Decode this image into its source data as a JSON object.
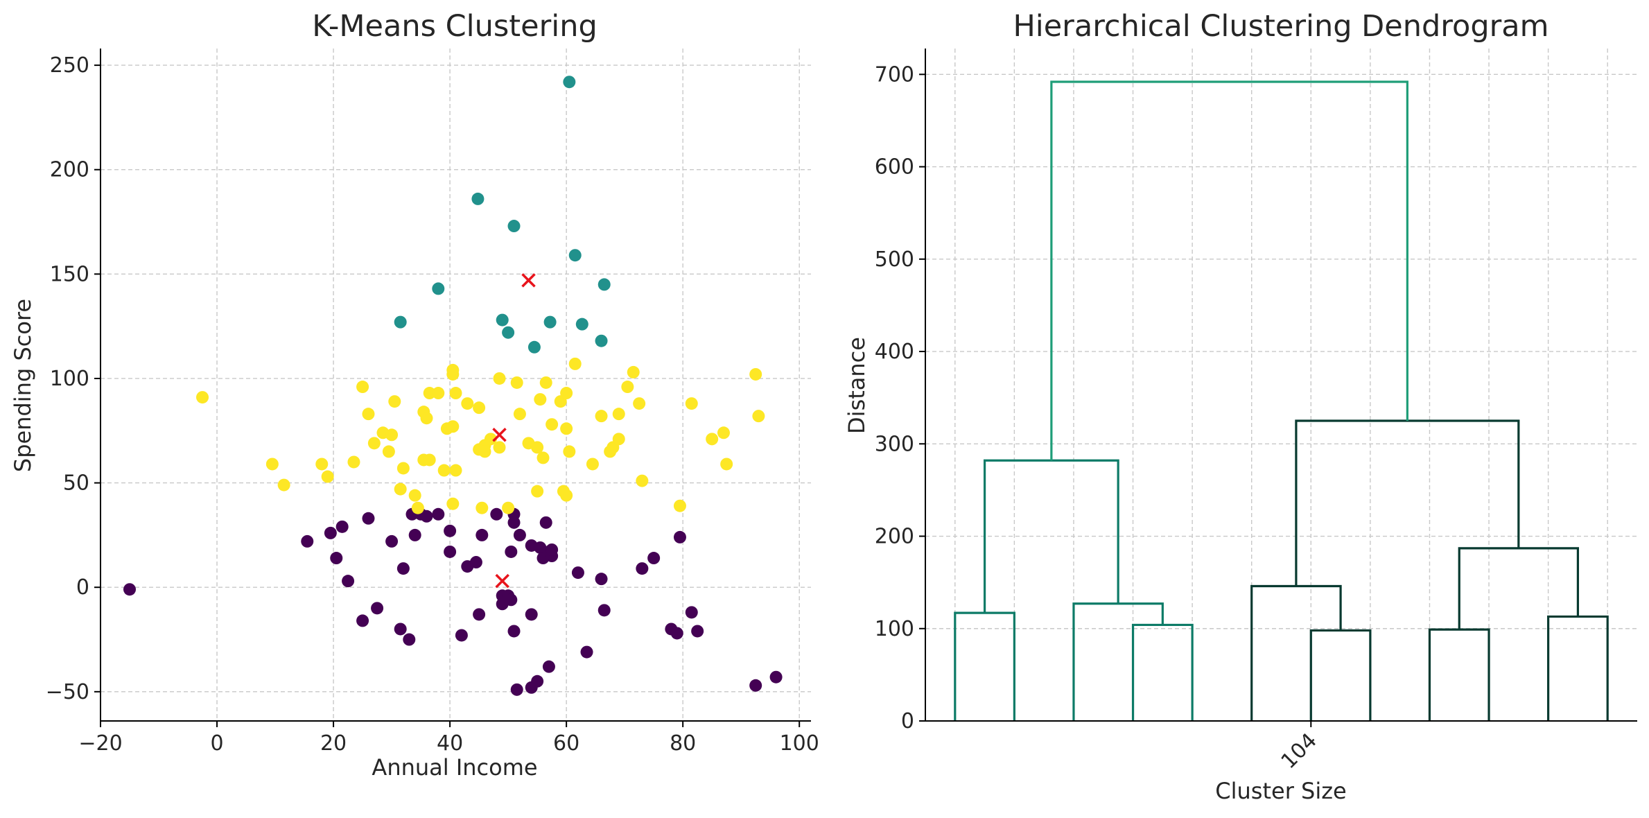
{
  "chart_data": [
    {
      "type": "scatter",
      "title": "K-Means Clustering",
      "xlabel": "Annual Income",
      "ylabel": "Spending Score",
      "xlim": [
        -20,
        102
      ],
      "ylim": [
        -64,
        258
      ],
      "xticks": [
        -20,
        0,
        20,
        40,
        60,
        80,
        100
      ],
      "yticks": [
        -50,
        0,
        50,
        100,
        150,
        200,
        250
      ],
      "grid": true,
      "colors": {
        "cluster_0": "#440154",
        "cluster_1": "#21918c",
        "cluster_2": "#fde725",
        "centroid": "#e8141c"
      },
      "series": [
        {
          "cluster": 0,
          "points": [
            [
              -15,
              -1
            ],
            [
              15.5,
              22
            ],
            [
              19.5,
              26
            ],
            [
              20.5,
              14
            ],
            [
              21.5,
              29
            ],
            [
              22.5,
              3
            ],
            [
              25,
              -16
            ],
            [
              26,
              33
            ],
            [
              27.5,
              -10
            ],
            [
              30,
              22
            ],
            [
              31.5,
              -20
            ],
            [
              32,
              9
            ],
            [
              33,
              -25
            ],
            [
              33.5,
              35
            ],
            [
              34,
              25
            ],
            [
              35,
              35
            ],
            [
              36,
              34
            ],
            [
              38,
              35
            ],
            [
              40,
              27
            ],
            [
              40,
              17
            ],
            [
              42,
              -23
            ],
            [
              43,
              10
            ],
            [
              45,
              -13
            ],
            [
              44.5,
              12
            ],
            [
              45.5,
              25
            ],
            [
              48,
              35
            ],
            [
              49,
              -4
            ],
            [
              49,
              -8
            ],
            [
              50,
              -4
            ],
            [
              50.5,
              -6
            ],
            [
              50.5,
              17
            ],
            [
              51,
              31
            ],
            [
              51,
              35
            ],
            [
              51,
              -21
            ],
            [
              51.5,
              -49
            ],
            [
              52,
              25
            ],
            [
              54,
              20
            ],
            [
              54,
              -13
            ],
            [
              54,
              -48
            ],
            [
              55,
              -45
            ],
            [
              55.5,
              19
            ],
            [
              56,
              14
            ],
            [
              56.5,
              31
            ],
            [
              57,
              17
            ],
            [
              57,
              -38
            ],
            [
              57.5,
              15
            ],
            [
              57.5,
              18
            ],
            [
              62,
              7
            ],
            [
              63.5,
              -31
            ],
            [
              66,
              4
            ],
            [
              66.5,
              -11
            ],
            [
              73,
              9
            ],
            [
              75,
              14
            ],
            [
              78,
              -20
            ],
            [
              79,
              -22
            ],
            [
              79.5,
              24
            ],
            [
              81.5,
              -12
            ],
            [
              82.5,
              -21
            ],
            [
              92.5,
              -47
            ],
            [
              96,
              -43
            ]
          ]
        },
        {
          "cluster": 1,
          "points": [
            [
              31.5,
              127
            ],
            [
              38,
              143
            ],
            [
              44.8,
              186
            ],
            [
              49,
              128
            ],
            [
              50,
              122
            ],
            [
              51,
              173
            ],
            [
              54.5,
              115
            ],
            [
              57.2,
              127
            ],
            [
              60.5,
              242
            ],
            [
              61.5,
              159
            ],
            [
              62.7,
              126
            ],
            [
              66,
              118
            ],
            [
              66.5,
              145
            ]
          ]
        },
        {
          "cluster": 2,
          "points": [
            [
              -2.5,
              91
            ],
            [
              9.5,
              59
            ],
            [
              11.5,
              49
            ],
            [
              18,
              59
            ],
            [
              19,
              53
            ],
            [
              23.5,
              60
            ],
            [
              25,
              96
            ],
            [
              26,
              83
            ],
            [
              27,
              69
            ],
            [
              28.5,
              74
            ],
            [
              29.5,
              65
            ],
            [
              30,
              73
            ],
            [
              30.5,
              89
            ],
            [
              31.5,
              47
            ],
            [
              32,
              57
            ],
            [
              34,
              44
            ],
            [
              34.5,
              38
            ],
            [
              35.5,
              61
            ],
            [
              35.5,
              84
            ],
            [
              36,
              81
            ],
            [
              36.5,
              61
            ],
            [
              36.5,
              93
            ],
            [
              38,
              93
            ],
            [
              39,
              56
            ],
            [
              39.5,
              76
            ],
            [
              40.5,
              104
            ],
            [
              40.5,
              102
            ],
            [
              40.5,
              40
            ],
            [
              40.5,
              77
            ],
            [
              41,
              93
            ],
            [
              41,
              56
            ],
            [
              43,
              88
            ],
            [
              45,
              86
            ],
            [
              45,
              66
            ],
            [
              45.5,
              38
            ],
            [
              46,
              68
            ],
            [
              46,
              65
            ],
            [
              47,
              71
            ],
            [
              48.5,
              67
            ],
            [
              48.5,
              100
            ],
            [
              50,
              38
            ],
            [
              51.5,
              98
            ],
            [
              52,
              83
            ],
            [
              53.5,
              69
            ],
            [
              55,
              46
            ],
            [
              55,
              67
            ],
            [
              55.5,
              90
            ],
            [
              56,
              62
            ],
            [
              56.5,
              98
            ],
            [
              57.5,
              78
            ],
            [
              59,
              89
            ],
            [
              59.5,
              46
            ],
            [
              60,
              44
            ],
            [
              60,
              93
            ],
            [
              60,
              76
            ],
            [
              60.5,
              65
            ],
            [
              61.5,
              107
            ],
            [
              64.5,
              59
            ],
            [
              66,
              82
            ],
            [
              67.5,
              65
            ],
            [
              68,
              67
            ],
            [
              69,
              83
            ],
            [
              69,
              71
            ],
            [
              70.5,
              96
            ],
            [
              71.5,
              103
            ],
            [
              72.5,
              88
            ],
            [
              73,
              51
            ],
            [
              79.5,
              39
            ],
            [
              81.5,
              88
            ],
            [
              85,
              71
            ],
            [
              87,
              74
            ],
            [
              87.5,
              59
            ],
            [
              92.5,
              102
            ],
            [
              93,
              82
            ]
          ]
        }
      ],
      "centroids": [
        [
          49,
          3
        ],
        [
          48.5,
          73
        ],
        [
          53.5,
          147
        ]
      ]
    },
    {
      "type": "dendrogram",
      "title": "Hierarchical Clustering Dendrogram",
      "xlabel": "Cluster Size",
      "ylabel": "Distance",
      "ylim": [
        0,
        728
      ],
      "yticks": [
        0,
        100,
        200,
        300,
        400,
        500,
        600,
        700
      ],
      "xlim": [
        0,
        120
      ],
      "xticks": [
        5,
        15,
        25,
        35,
        45,
        55,
        65,
        75,
        85,
        95,
        105,
        115
      ],
      "xtick_labels": [
        "104"
      ],
      "xtick_label_position": 65,
      "grid": true,
      "colors": {
        "left_group": "#0d7b67",
        "right_group": "#083a30",
        "root": "#1f9e78"
      },
      "links": [
        {
          "x": [
            5,
            5,
            15,
            15
          ],
          "y": [
            0,
            117,
            117,
            0
          ],
          "group": "left_group"
        },
        {
          "x": [
            35,
            35,
            45,
            45
          ],
          "y": [
            0,
            104,
            104,
            0
          ],
          "group": "left_group"
        },
        {
          "x": [
            25,
            25,
            40,
            40
          ],
          "y": [
            0,
            127,
            127,
            104
          ],
          "group": "left_group"
        },
        {
          "x": [
            10,
            10,
            32.5,
            32.5
          ],
          "y": [
            117,
            282,
            282,
            127
          ],
          "group": "left_group"
        },
        {
          "x": [
            65,
            65,
            75,
            75
          ],
          "y": [
            0,
            98,
            98,
            0
          ],
          "group": "right_group"
        },
        {
          "x": [
            55,
            55,
            70,
            70
          ],
          "y": [
            0,
            146,
            146,
            98
          ],
          "group": "right_group"
        },
        {
          "x": [
            85,
            85,
            95,
            95
          ],
          "y": [
            0,
            99,
            99,
            0
          ],
          "group": "right_group"
        },
        {
          "x": [
            105,
            105,
            115,
            115
          ],
          "y": [
            0,
            113,
            113,
            0
          ],
          "group": "right_group"
        },
        {
          "x": [
            90,
            90,
            110,
            110
          ],
          "y": [
            99,
            187,
            187,
            113
          ],
          "group": "right_group"
        },
        {
          "x": [
            62.5,
            62.5,
            100,
            100
          ],
          "y": [
            146,
            325,
            325,
            187
          ],
          "group": "right_group"
        },
        {
          "x": [
            21.25,
            21.25,
            81.25,
            81.25
          ],
          "y": [
            282,
            692,
            692,
            325
          ],
          "group": "root"
        }
      ]
    }
  ]
}
